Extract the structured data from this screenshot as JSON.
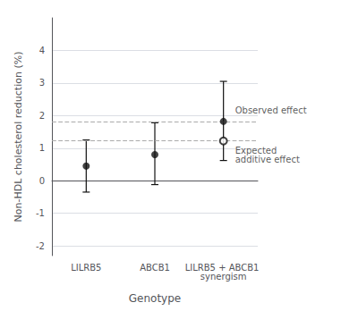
{
  "chart_data": {
    "type": "scatter",
    "xlabel": "Genotype",
    "ylabel": "Non-HDL cholesterol reduction (%)",
    "categories": [
      "LILRB5",
      "ABCB1",
      "LILRB5 + ABCB1 synergism"
    ],
    "series": [
      {
        "color": "#111111",
        "marker": "filled",
        "values": [
          0.45,
          0.8,
          1.82
        ],
        "ci_low": [
          -0.35,
          -0.12,
          0.62
        ],
        "ci_high": [
          1.25,
          1.78,
          3.05
        ]
      },
      {
        "color": "#111111",
        "marker": "open",
        "values": [
          null,
          null,
          1.22
        ]
      }
    ],
    "reference_lines": [
      1.82,
      1.22
    ],
    "annotations": [
      {
        "text": "Observed effect",
        "x": "LILRB5 + ABCB1 synergism",
        "y": 1.82
      },
      {
        "text": "Expected\nadditive effect",
        "x": "LILRB5 + ABCB1 synergism",
        "y": 1.22
      }
    ],
    "ylim": [
      -2.3,
      5.0
    ],
    "yticks": [
      -2,
      -1,
      0,
      1,
      2,
      3,
      4
    ],
    "grid": true
  }
}
